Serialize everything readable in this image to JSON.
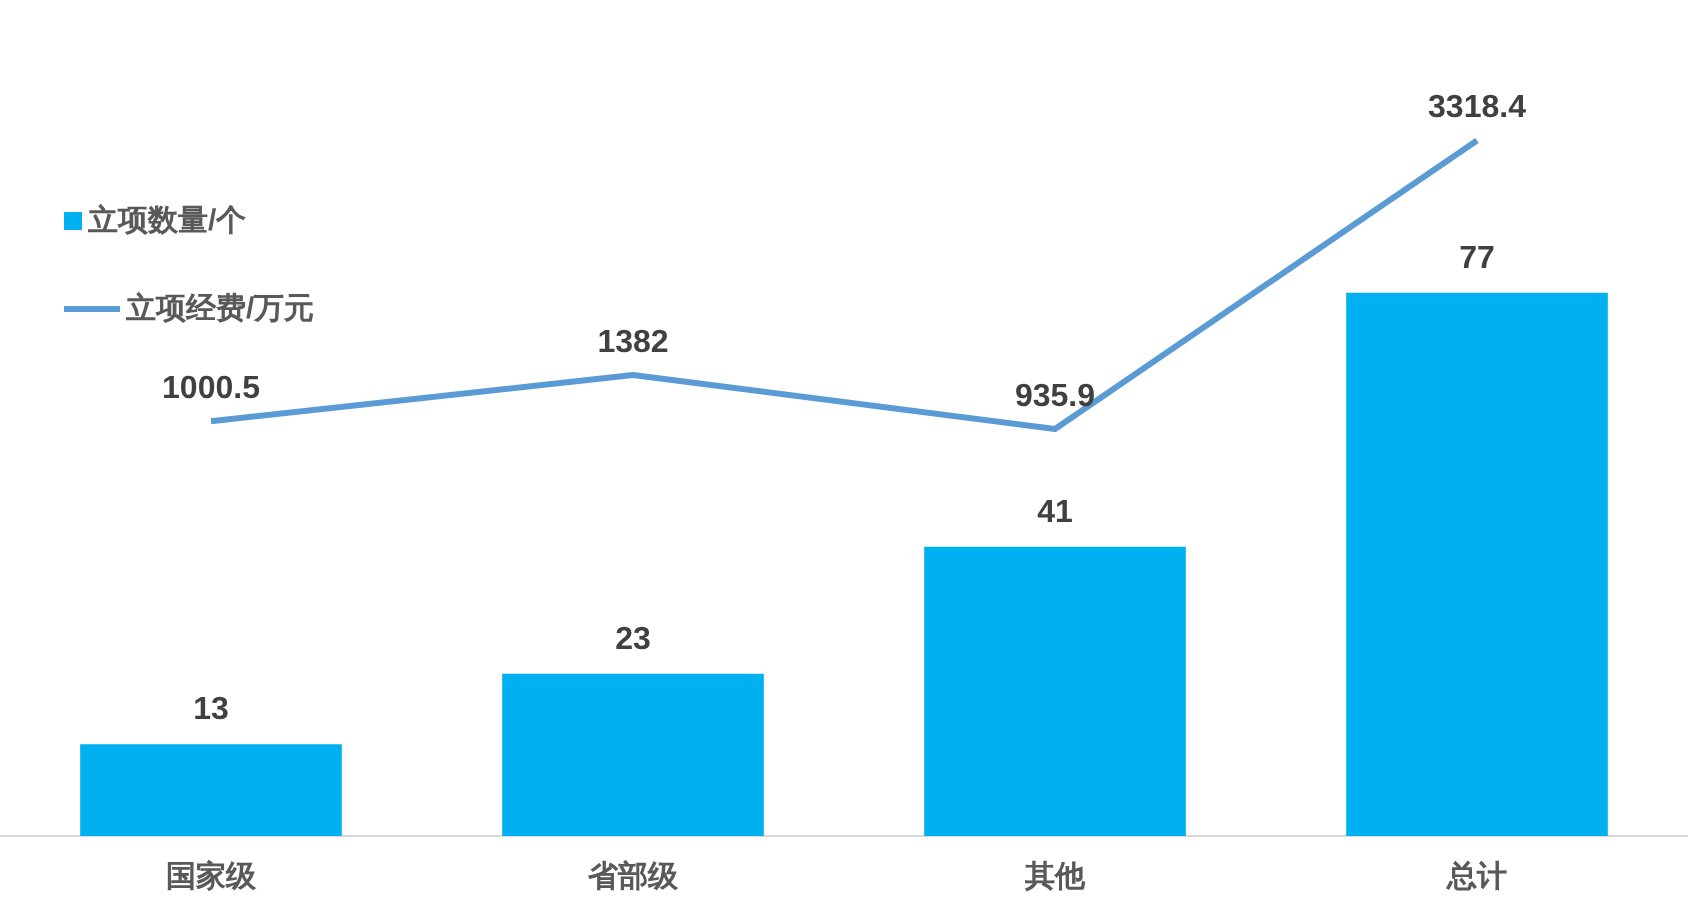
{
  "chart_data": {
    "type": "bar",
    "categories": [
      "国家级",
      "省部级",
      "其他",
      "总计"
    ],
    "series": [
      {
        "name": "立项数量/个",
        "color": "#00b0f0",
        "values": [
          13,
          23,
          41,
          77
        ]
      },
      {
        "name": "立项经费/万元",
        "type": "line",
        "axis": "y2",
        "color": "#5b9bd5",
        "values": [
          1000.5,
          1382,
          935.9,
          3318.4
        ]
      }
    ],
    "tick_labels": "x",
    "data_labels": true,
    "grid": false,
    "legend": "top left",
    "marker": "none"
  }
}
